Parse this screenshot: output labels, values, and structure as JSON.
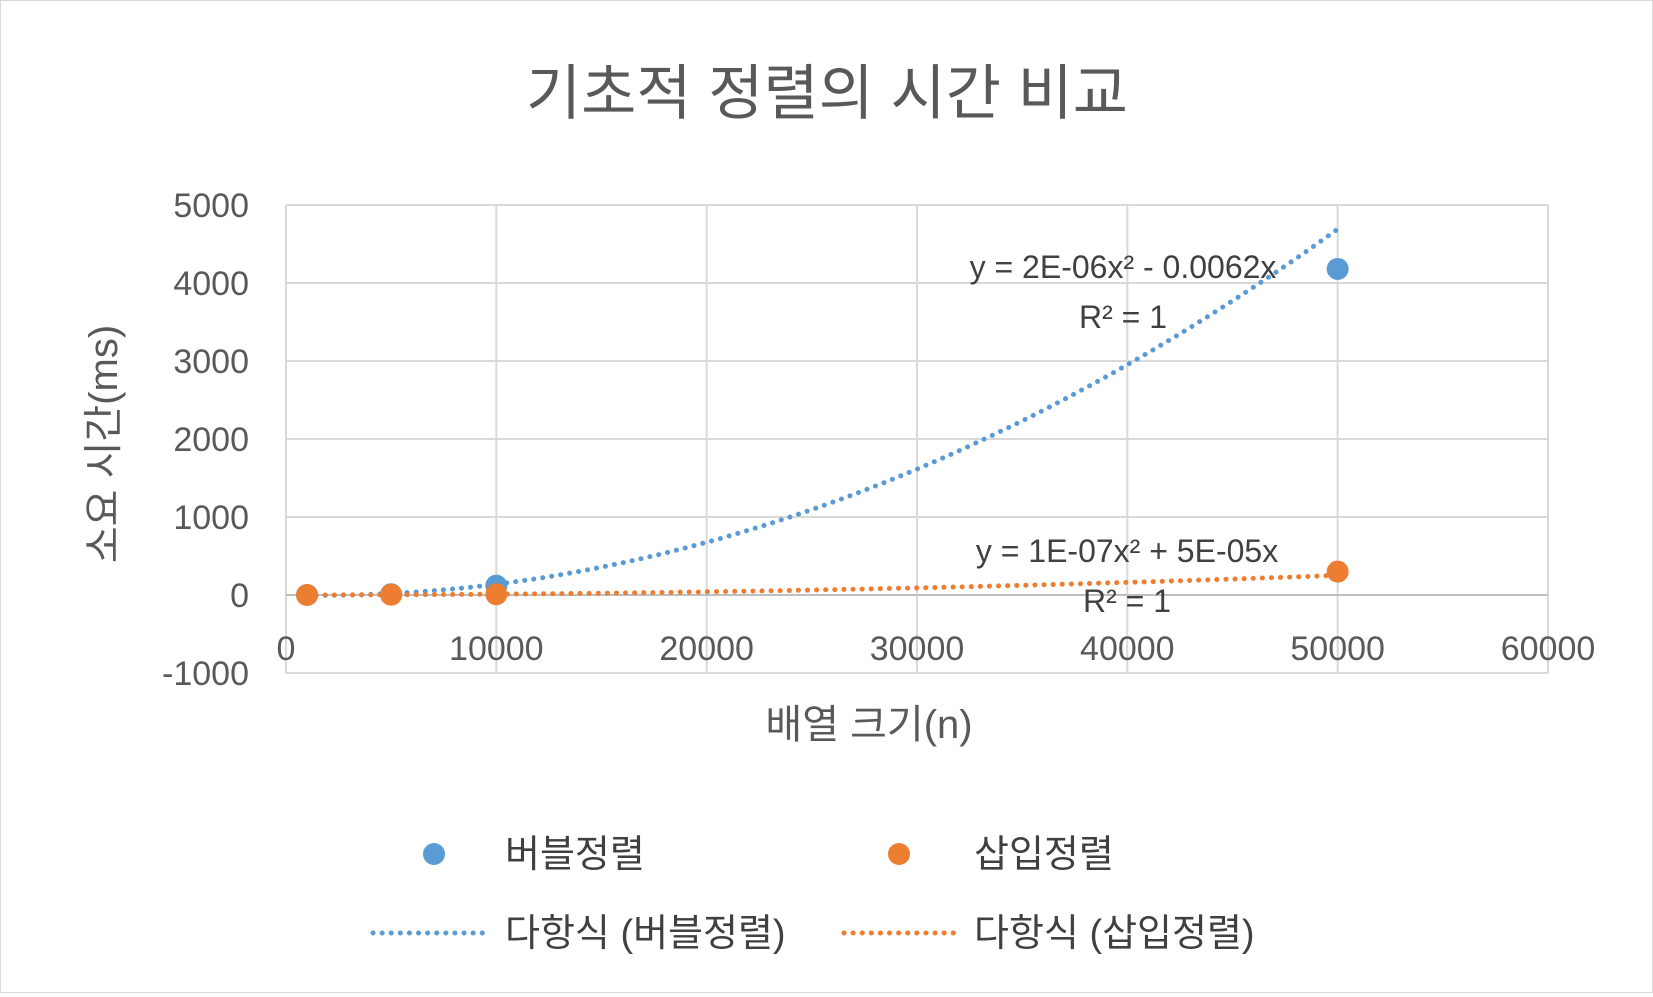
{
  "chart_data": {
    "type": "scatter",
    "title": "기초적 정렬의 시간 비교",
    "xlabel": "배열 크기(n)",
    "ylabel": "소요 시간(ms)",
    "xlim": [
      0,
      60000
    ],
    "ylim": [
      -1000,
      5000
    ],
    "x_ticks": [
      "0",
      "10000",
      "20000",
      "30000",
      "40000",
      "50000",
      "60000"
    ],
    "y_ticks": [
      "-1000",
      "0",
      "1000",
      "2000",
      "3000",
      "4000",
      "5000"
    ],
    "grid": true,
    "legend_position": "bottom",
    "series": [
      {
        "name": "버블정렬",
        "color": "#5b9bd5",
        "points": [
          [
            1000,
            0
          ],
          [
            5000,
            10
          ],
          [
            10000,
            120
          ],
          [
            50000,
            4180
          ]
        ],
        "trendline": {
          "name": "다항식 (버블정렬)",
          "type": "polynomial",
          "coefficients": {
            "a": 2e-06,
            "b": -0.0062
          },
          "equation_lines": [
            "y = 2E-06x² - 0.0062x",
            "R² = 1"
          ]
        }
      },
      {
        "name": "삽입정렬",
        "color": "#ed7d31",
        "points": [
          [
            1000,
            0
          ],
          [
            5000,
            3
          ],
          [
            10000,
            10
          ],
          [
            50000,
            300
          ]
        ],
        "trendline": {
          "name": "다항식 (삽입정렬)",
          "type": "polynomial",
          "coefficients": {
            "a": 1e-07,
            "b": 5e-05
          },
          "equation_lines": [
            "y = 1E-07x² + 5E-05x",
            "R² = 1"
          ]
        }
      }
    ]
  }
}
